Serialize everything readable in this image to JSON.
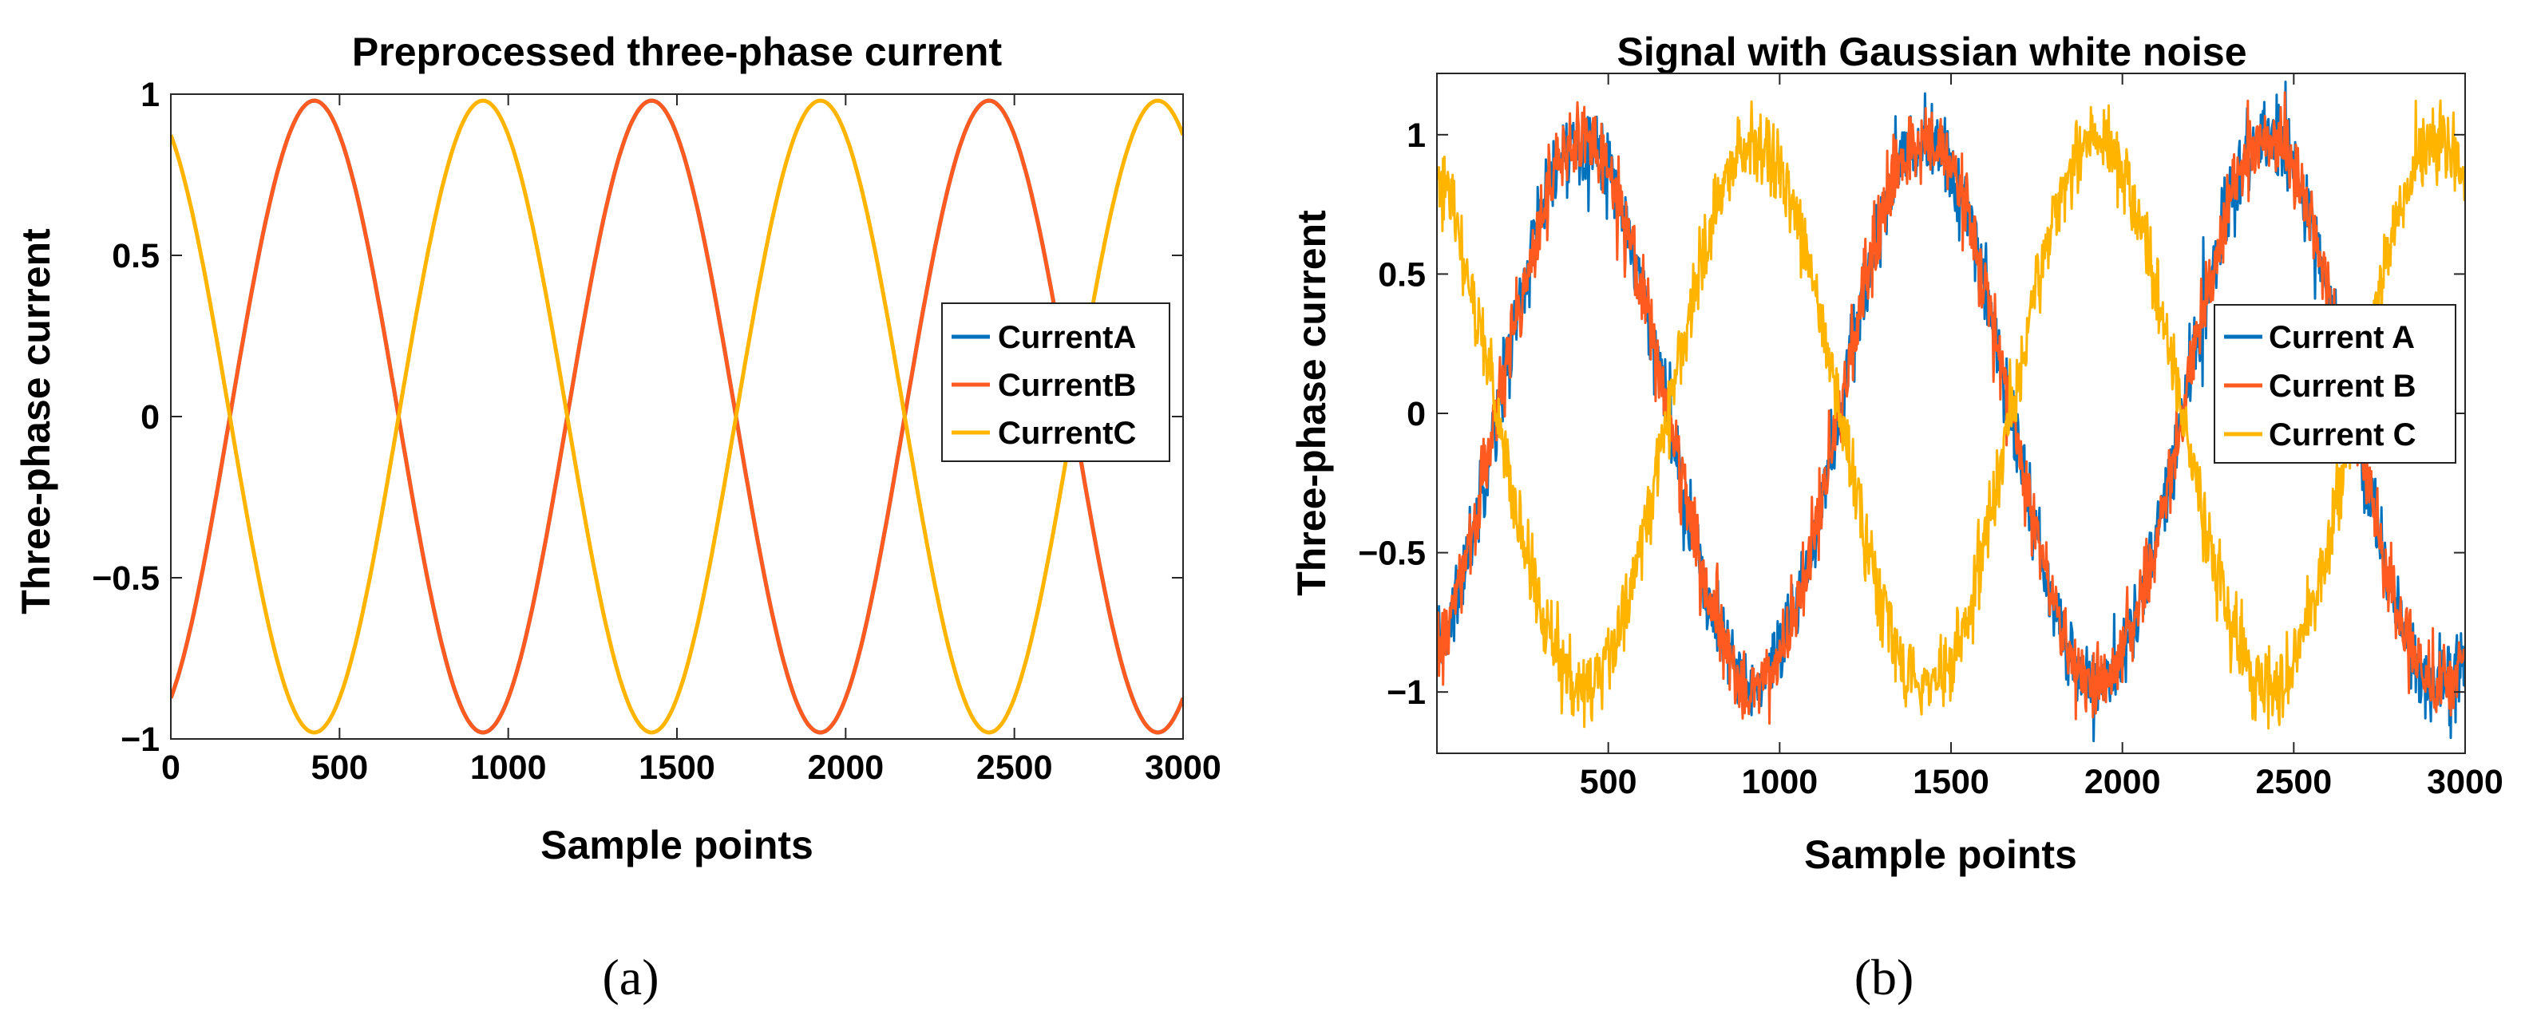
{
  "figure": {
    "captions": [
      "(a)",
      "(b)"
    ]
  },
  "chart_data": [
    {
      "type": "line",
      "title": "Preprocessed three-phase current",
      "xlabel": "Sample points",
      "ylabel": "Three-phase current",
      "xlim": [
        0,
        3000
      ],
      "ylim": [
        -1,
        1
      ],
      "xticks": [
        0,
        500,
        1000,
        1500,
        2000,
        2500,
        3000
      ],
      "xtick_labels": [
        "0",
        "500",
        "1000",
        "1500",
        "2000",
        "2500",
        "3000"
      ],
      "yticks": [
        -1,
        -0.5,
        0,
        0.5,
        1
      ],
      "ytick_labels": [
        "−1",
        "−0.5",
        "0",
        "0.5",
        "1"
      ],
      "grid": false,
      "noise": 0,
      "legend": "right",
      "series": [
        {
          "name": "CurrentA",
          "color": "#0072BD",
          "period": 1000,
          "peak_x": 1425,
          "amplitude": 0.98
        },
        {
          "name": "CurrentB",
          "color": "#FF5A1F",
          "period": 1000,
          "peak_x": 425,
          "amplitude": 0.98
        },
        {
          "name": "CurrentC",
          "color": "#FFB400",
          "period": 1000,
          "peak_x": 925,
          "amplitude": 0.98
        }
      ]
    },
    {
      "type": "line",
      "title": "Signal with Gaussian white noise",
      "xlabel": "Sample points",
      "ylabel": "Three-phase current",
      "xlim": [
        0,
        3000
      ],
      "ylim": [
        -1.22,
        1.22
      ],
      "xticks": [
        500,
        1000,
        1500,
        2000,
        2500,
        3000
      ],
      "xtick_labels": [
        "500",
        "1000",
        "1500",
        "2000",
        "2500",
        "3000"
      ],
      "yticks": [
        -1,
        -0.5,
        0,
        0.5,
        1
      ],
      "ytick_labels": [
        "−1",
        "−0.5",
        "0",
        "0.5",
        "1"
      ],
      "grid": false,
      "noise": 0.07,
      "legend": "right",
      "series": [
        {
          "name": "Current A",
          "color": "#0072BD",
          "period": 1000,
          "peak_x": 1425,
          "amplitude": 0.98
        },
        {
          "name": "Current B",
          "color": "#FF5A1F",
          "period": 1000,
          "peak_x": 425,
          "amplitude": 0.98
        },
        {
          "name": "Current C",
          "color": "#FFB400",
          "period": 1000,
          "peak_x": 925,
          "amplitude": 0.98
        }
      ]
    }
  ]
}
